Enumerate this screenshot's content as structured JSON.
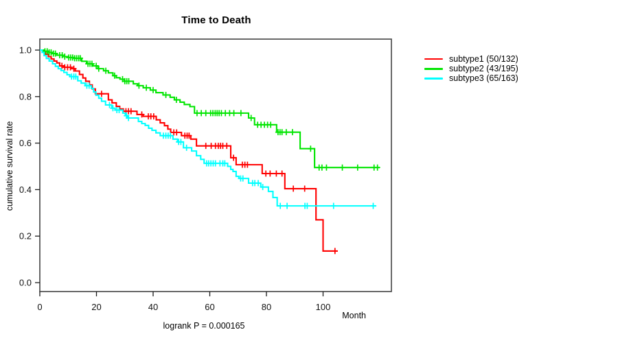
{
  "chart_data": {
    "type": "line",
    "subtype": "kaplan-meier-step-survival",
    "title": "Time to Death",
    "xlabel": "Month",
    "ylabel": "cumulative survival rate",
    "annotation": "logrank P = 0.000165",
    "xlim": [
      0,
      124
    ],
    "ylim": [
      0,
      1
    ],
    "x_ticks": [
      0,
      20,
      40,
      60,
      80,
      100
    ],
    "y_ticks": [
      "0.0",
      "0.2",
      "0.4",
      "0.6",
      "0.8",
      "1.0"
    ],
    "grid": false,
    "legend_position": "right-outside",
    "axis_color": "#4d4d4d",
    "tick_color": "#1a1a1a",
    "series": [
      {
        "name": "subtype1",
        "label": "subtype1 (50/132)",
        "color": "#ff0000",
        "events": 50,
        "n": 132,
        "end_month": 105.2,
        "steps": [
          [
            0,
            1.0
          ],
          [
            1,
            0.992
          ],
          [
            2,
            0.982
          ],
          [
            3,
            0.972
          ],
          [
            4,
            0.962
          ],
          [
            5,
            0.953
          ],
          [
            6,
            0.945
          ],
          [
            7,
            0.932
          ],
          [
            8.5,
            0.926
          ],
          [
            11,
            0.92
          ],
          [
            12.5,
            0.91
          ],
          [
            14,
            0.895
          ],
          [
            15.2,
            0.88
          ],
          [
            16.2,
            0.866
          ],
          [
            17.5,
            0.85
          ],
          [
            18.5,
            0.833
          ],
          [
            19.6,
            0.812
          ],
          [
            24.2,
            0.786
          ],
          [
            25.5,
            0.773
          ],
          [
            27,
            0.758
          ],
          [
            28.2,
            0.747
          ],
          [
            29.5,
            0.737
          ],
          [
            34.3,
            0.723
          ],
          [
            36.5,
            0.715
          ],
          [
            41.1,
            0.7
          ],
          [
            42.5,
            0.687
          ],
          [
            44,
            0.675
          ],
          [
            45.2,
            0.66
          ],
          [
            46.2,
            0.646
          ],
          [
            50,
            0.632
          ],
          [
            53.3,
            0.617
          ],
          [
            55.3,
            0.588
          ],
          [
            67.4,
            0.537
          ],
          [
            69.3,
            0.507
          ],
          [
            78.5,
            0.469
          ],
          [
            86.5,
            0.404
          ],
          [
            97.5,
            0.27
          ],
          [
            100,
            0.136
          ]
        ],
        "censor_months": [
          7.8,
          8.8,
          9.8,
          10.8,
          12.0,
          21.8,
          30.4,
          31.3,
          32.2,
          36.0,
          38.3,
          39.2,
          40.2,
          47.3,
          48.3,
          51.2,
          52.0,
          52.7,
          58.6,
          60.5,
          62.0,
          63.0,
          63.8,
          64.6,
          66.0,
          68.4,
          71.5,
          72.4,
          73.3,
          79.8,
          81.3,
          83.5,
          85.5,
          89.5,
          93.5,
          104.2
        ]
      },
      {
        "name": "subtype2",
        "label": "subtype2 (43/195)",
        "color": "#00e500",
        "events": 43,
        "n": 195,
        "end_month": 120,
        "steps": [
          [
            0,
            1.0
          ],
          [
            1.5,
            0.995
          ],
          [
            3,
            0.99
          ],
          [
            4.5,
            0.985
          ],
          [
            6,
            0.978
          ],
          [
            8,
            0.972
          ],
          [
            10,
            0.968
          ],
          [
            12,
            0.965
          ],
          [
            14.8,
            0.952
          ],
          [
            16.5,
            0.941
          ],
          [
            18.8,
            0.932
          ],
          [
            20.5,
            0.92
          ],
          [
            22.5,
            0.911
          ],
          [
            24.2,
            0.902
          ],
          [
            25.8,
            0.89
          ],
          [
            27,
            0.881
          ],
          [
            28.3,
            0.875
          ],
          [
            29.8,
            0.866
          ],
          [
            33,
            0.855
          ],
          [
            34.5,
            0.847
          ],
          [
            36.5,
            0.838
          ],
          [
            39,
            0.828
          ],
          [
            41,
            0.817
          ],
          [
            43.5,
            0.807
          ],
          [
            46,
            0.797
          ],
          [
            47.5,
            0.786
          ],
          [
            49.5,
            0.776
          ],
          [
            51,
            0.766
          ],
          [
            53,
            0.757
          ],
          [
            54.6,
            0.729
          ],
          [
            73.7,
            0.708
          ],
          [
            75.8,
            0.679
          ],
          [
            83.6,
            0.647
          ],
          [
            91.9,
            0.576
          ],
          [
            97,
            0.495
          ]
        ],
        "censor_months": [
          1.8,
          2.6,
          3.3,
          4.0,
          4.8,
          5.5,
          7.0,
          7.9,
          8.8,
          10.2,
          10.9,
          11.6,
          12.3,
          13.0,
          13.7,
          14.3,
          17.0,
          17.7,
          18.4,
          19.9,
          20.8,
          23.3,
          26.4,
          29.2,
          30.0,
          30.7,
          31.4,
          35.0,
          37.6,
          40.0,
          44.5,
          48.2,
          55.5,
          57.0,
          58.6,
          60.3,
          61.1,
          61.9,
          62.6,
          63.3,
          64.1,
          65.5,
          67.0,
          68.5,
          71.0,
          74.6,
          76.9,
          78.1,
          79.3,
          80.4,
          81.5,
          84.1,
          84.8,
          85.5,
          87.0,
          89.2,
          95.6,
          98.6,
          99.6,
          101.2,
          106.8,
          112.2,
          118.0,
          119.2
        ]
      },
      {
        "name": "subtype3",
        "label": "subtype3 (65/163)",
        "color": "#00ffff",
        "events": 65,
        "n": 163,
        "end_month": 118.8,
        "steps": [
          [
            0,
            1.0
          ],
          [
            0.8,
            0.99
          ],
          [
            1.5,
            0.976
          ],
          [
            2.3,
            0.964
          ],
          [
            3.3,
            0.953
          ],
          [
            4.5,
            0.941
          ],
          [
            5.5,
            0.93
          ],
          [
            6.5,
            0.92
          ],
          [
            7.5,
            0.912
          ],
          [
            8.5,
            0.904
          ],
          [
            9.6,
            0.894
          ],
          [
            10.6,
            0.886
          ],
          [
            13.4,
            0.868
          ],
          [
            14.6,
            0.858
          ],
          [
            16,
            0.847
          ],
          [
            18.2,
            0.835
          ],
          [
            19,
            0.82
          ],
          [
            19.8,
            0.806
          ],
          [
            20.8,
            0.793
          ],
          [
            21.8,
            0.78
          ],
          [
            23.2,
            0.764
          ],
          [
            25.4,
            0.75
          ],
          [
            26.6,
            0.742
          ],
          [
            29.3,
            0.729
          ],
          [
            30.2,
            0.718
          ],
          [
            31,
            0.708
          ],
          [
            34.8,
            0.693
          ],
          [
            36,
            0.684
          ],
          [
            37.2,
            0.676
          ],
          [
            38.4,
            0.664
          ],
          [
            39.6,
            0.655
          ],
          [
            41,
            0.644
          ],
          [
            42.5,
            0.632
          ],
          [
            47,
            0.617
          ],
          [
            48.6,
            0.605
          ],
          [
            50.7,
            0.58
          ],
          [
            53.6,
            0.566
          ],
          [
            55.3,
            0.546
          ],
          [
            56.8,
            0.53
          ],
          [
            58,
            0.513
          ],
          [
            66.3,
            0.5
          ],
          [
            67.4,
            0.487
          ],
          [
            68.2,
            0.478
          ],
          [
            69.3,
            0.457
          ],
          [
            70.3,
            0.448
          ],
          [
            73.7,
            0.428
          ],
          [
            78,
            0.411
          ],
          [
            80.7,
            0.392
          ],
          [
            82.3,
            0.366
          ],
          [
            83.8,
            0.33
          ]
        ],
        "censor_months": [
          11.2,
          12.0,
          12.7,
          16.6,
          17.4,
          24.6,
          25.8,
          27.2,
          28.0,
          30.6,
          31.3,
          43.6,
          44.5,
          45.3,
          46.1,
          49.0,
          49.8,
          51.8,
          58.9,
          59.6,
          60.4,
          61.2,
          62.0,
          63.6,
          64.6,
          65.3,
          70.9,
          71.7,
          75.1,
          75.9,
          77.1,
          78.7,
          84.9,
          87.3,
          93.6,
          94.4,
          103.7,
          117.7
        ]
      }
    ]
  }
}
